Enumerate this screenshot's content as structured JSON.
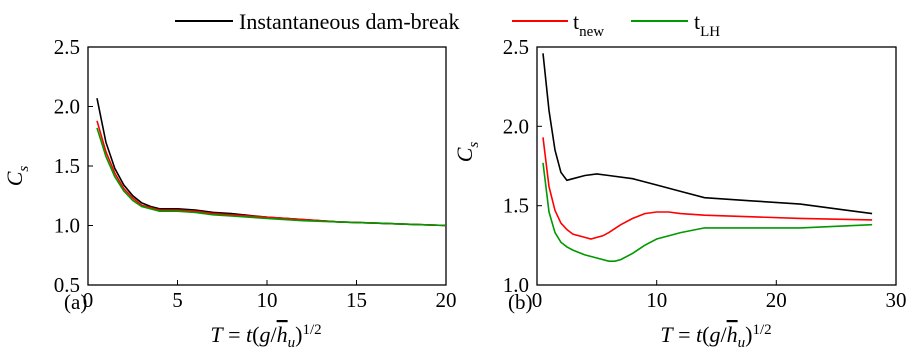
{
  "legend": {
    "items": [
      {
        "label": "Instantaneous dam-break",
        "color": "#000000"
      },
      {
        "label": "t",
        "sub": "new",
        "color": "#ff0000"
      },
      {
        "label": "t",
        "sub": "LH",
        "color": "#009900"
      }
    ]
  },
  "chart_data": [
    {
      "type": "line",
      "panel_label": "(a)",
      "xlabel": "T = t(g/h̄u)1/2",
      "ylabel": "Cs",
      "xlim": [
        0,
        20
      ],
      "ylim": [
        0.5,
        2.5
      ],
      "xticks": [
        0,
        5,
        10,
        15,
        20
      ],
      "yticks": [
        0.5,
        1.0,
        1.5,
        2.0,
        2.5
      ],
      "xtick_labels": [
        "0",
        "5",
        "10",
        "15",
        "20"
      ],
      "ytick_labels": [
        "0.5",
        "1.0",
        "1.5",
        "2.0",
        "2.5"
      ],
      "series": [
        {
          "name": "Instantaneous dam-break",
          "color": "#000000",
          "x": [
            0.5,
            1,
            1.5,
            2,
            2.5,
            3,
            3.5,
            4,
            5,
            6,
            7,
            8,
            10,
            12,
            14,
            16,
            18,
            20
          ],
          "y": [
            2.07,
            1.7,
            1.48,
            1.34,
            1.25,
            1.19,
            1.16,
            1.14,
            1.14,
            1.13,
            1.11,
            1.1,
            1.07,
            1.05,
            1.03,
            1.02,
            1.01,
            1.0
          ]
        },
        {
          "name": "t_new",
          "color": "#ff0000",
          "x": [
            0.5,
            1,
            1.5,
            2,
            2.5,
            3,
            3.5,
            4,
            5,
            6,
            7,
            8,
            10,
            12,
            14,
            16,
            18,
            20
          ],
          "y": [
            1.88,
            1.62,
            1.44,
            1.31,
            1.23,
            1.17,
            1.15,
            1.13,
            1.13,
            1.12,
            1.1,
            1.09,
            1.07,
            1.05,
            1.03,
            1.02,
            1.01,
            1.0
          ]
        },
        {
          "name": "t_LH",
          "color": "#009900",
          "x": [
            0.5,
            1,
            1.5,
            2,
            2.5,
            3,
            3.5,
            4,
            5,
            6,
            7,
            8,
            10,
            12,
            14,
            16,
            18,
            20
          ],
          "y": [
            1.82,
            1.58,
            1.41,
            1.29,
            1.21,
            1.16,
            1.14,
            1.12,
            1.12,
            1.11,
            1.09,
            1.08,
            1.06,
            1.04,
            1.03,
            1.02,
            1.01,
            1.0
          ]
        }
      ]
    },
    {
      "type": "line",
      "panel_label": "(b)",
      "xlabel": "T = t(g/h̄u)1/2",
      "ylabel": "Cs",
      "xlim": [
        0,
        30
      ],
      "ylim": [
        1.0,
        2.5
      ],
      "xticks": [
        0,
        10,
        20,
        30
      ],
      "yticks": [
        1.0,
        1.5,
        2.0,
        2.5
      ],
      "xtick_labels": [
        "0",
        "10",
        "20",
        "30"
      ],
      "ytick_labels": [
        "1.0",
        "1.5",
        "2.0",
        "2.5"
      ],
      "series": [
        {
          "name": "Instantaneous dam-break",
          "color": "#000000",
          "x": [
            0.5,
            1,
            1.5,
            2,
            2.5,
            3,
            4,
            5,
            6,
            8,
            10,
            12,
            14,
            18,
            22,
            26,
            28
          ],
          "y": [
            2.46,
            2.1,
            1.85,
            1.71,
            1.66,
            1.67,
            1.69,
            1.7,
            1.69,
            1.67,
            1.63,
            1.59,
            1.55,
            1.53,
            1.51,
            1.47,
            1.45
          ]
        },
        {
          "name": "t_new",
          "color": "#ff0000",
          "x": [
            0.5,
            1,
            1.5,
            2,
            2.5,
            3,
            4,
            4.5,
            5,
            5.5,
            6,
            7,
            8,
            9,
            10,
            11,
            12,
            14,
            18,
            22,
            28
          ],
          "y": [
            1.93,
            1.62,
            1.47,
            1.39,
            1.35,
            1.32,
            1.3,
            1.29,
            1.3,
            1.31,
            1.33,
            1.38,
            1.42,
            1.45,
            1.46,
            1.46,
            1.45,
            1.44,
            1.43,
            1.42,
            1.41
          ]
        },
        {
          "name": "t_LH",
          "color": "#009900",
          "x": [
            0.5,
            1,
            1.5,
            2,
            2.5,
            3,
            4,
            5,
            6,
            6.5,
            7,
            8,
            9,
            10,
            12,
            14,
            18,
            22,
            28
          ],
          "y": [
            1.77,
            1.46,
            1.33,
            1.27,
            1.24,
            1.22,
            1.19,
            1.17,
            1.15,
            1.15,
            1.16,
            1.2,
            1.25,
            1.29,
            1.33,
            1.36,
            1.36,
            1.36,
            1.38
          ]
        }
      ]
    }
  ]
}
